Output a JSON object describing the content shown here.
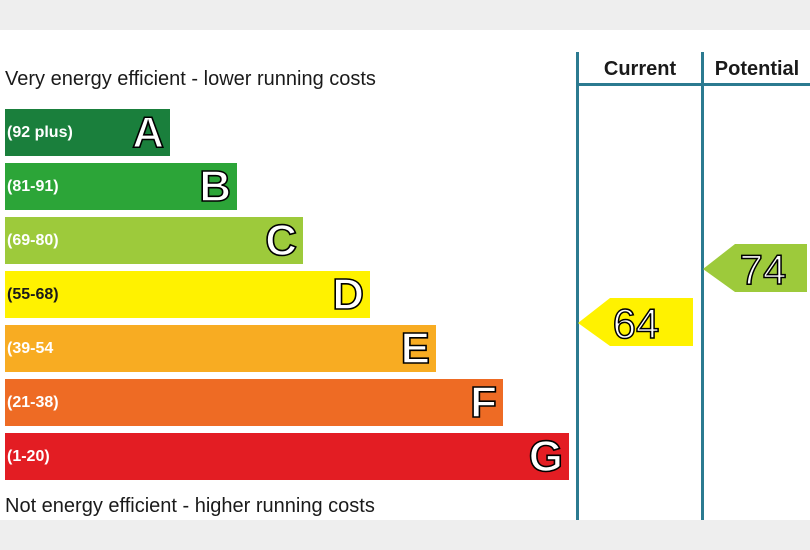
{
  "chart_data": {
    "type": "bar",
    "top_caption": "Very energy efficient - lower running costs",
    "bottom_caption": "Not energy efficient - higher running costs",
    "bands": [
      {
        "letter": "A",
        "range": "(92 plus)",
        "color": "#1a7f3c"
      },
      {
        "letter": "B",
        "range": "(81-91)",
        "color": "#2ca538"
      },
      {
        "letter": "C",
        "range": "(69-80)",
        "color": "#9dca3b"
      },
      {
        "letter": "D",
        "range": "(55-68)",
        "color": "#fff200"
      },
      {
        "letter": "E",
        "range": "(39-54",
        "color": "#f8ac22"
      },
      {
        "letter": "F",
        "range": "(21-38)",
        "color": "#ee6b24"
      },
      {
        "letter": "G",
        "range": "(1-20)",
        "color": "#e31d23"
      }
    ],
    "columns": {
      "current": "Current",
      "potential": "Potential"
    },
    "current": {
      "value": 64,
      "band": "D",
      "color": "#fff200"
    },
    "potential": {
      "value": 74,
      "band": "C",
      "color": "#9dca3b"
    }
  }
}
